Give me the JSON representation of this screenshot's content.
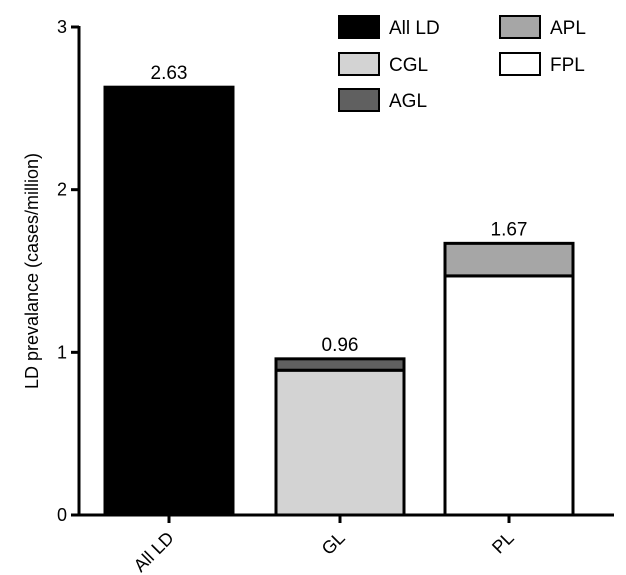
{
  "chart_data": {
    "type": "bar",
    "stacked": true,
    "ylabel": "LD prevalance (cases/million)",
    "ylim": [
      0,
      3
    ],
    "yticks": [
      "0",
      "1",
      "2",
      "3"
    ],
    "categories": [
      "All LD",
      "GL",
      "PL"
    ],
    "totals": [
      "2.63",
      "0.96",
      "1.67"
    ],
    "series": [
      {
        "name": "All LD",
        "color": "#000000",
        "values": [
          2.63,
          0,
          0
        ]
      },
      {
        "name": "CGL",
        "color": "#d3d3d3",
        "values": [
          0,
          0.89,
          0
        ]
      },
      {
        "name": "AGL",
        "color": "#606060",
        "values": [
          0,
          0.07,
          0
        ]
      },
      {
        "name": "FPL",
        "color": "#ffffff",
        "values": [
          0,
          0,
          1.47
        ]
      },
      {
        "name": "APL",
        "color": "#a6a6a6",
        "values": [
          0,
          0,
          0.2
        ]
      }
    ],
    "legend": {
      "placement": "top-right",
      "columns": [
        [
          "All LD",
          "CGL",
          "AGL"
        ],
        [
          "APL",
          "FPL"
        ]
      ]
    }
  }
}
